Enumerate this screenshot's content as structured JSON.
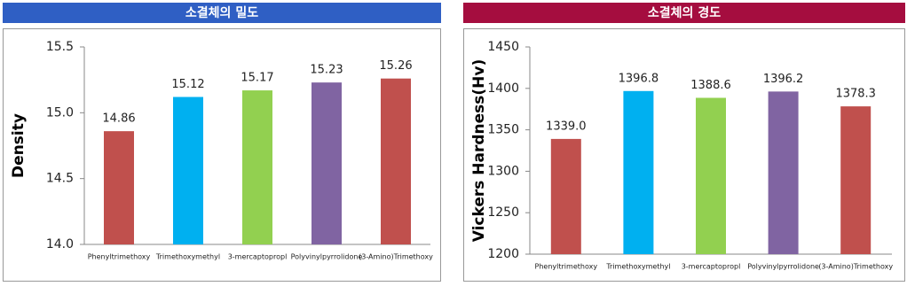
{
  "chart_data": [
    {
      "type": "bar",
      "title": "소결체의 밀도",
      "header_color": "#2f5fc4",
      "y_label": "Density",
      "categories": [
        "Phenyltrimethoxy",
        "Trimethoxymethyl",
        "3-mercaptopropl",
        "Polyvinylpyrrolidone",
        "(3-Amino)Trimethoxy"
      ],
      "values": [
        14.86,
        15.12,
        15.17,
        15.23,
        15.26
      ],
      "colors": [
        "#c0504d",
        "#00b0f0",
        "#92d050",
        "#8064a2",
        "#c0504d"
      ],
      "ylim": [
        14.0,
        15.5
      ],
      "yticks": [
        {
          "value": 14,
          "label": "14.0"
        },
        14.5,
        {
          "value": 15,
          "label": "15.0"
        },
        15.5
      ]
    },
    {
      "type": "bar",
      "title": "소결체의 경도",
      "header_color": "#a50d3f",
      "y_label": "Vickers Hardness(Hv)",
      "categories": [
        "Phenyltrimethoxy",
        "Trimethoxymethyl",
        "3-mercaptopropl",
        "Polyvinylpyrrolidone",
        "(3-Amino)Trimethoxy"
      ],
      "values": [
        1339.0,
        1396.8,
        1388.6,
        1396.2,
        1378.3
      ],
      "value_labels": [
        "1339.0",
        "1396.8",
        "1388.6",
        "1396.2",
        "1378.3"
      ],
      "colors": [
        "#c0504d",
        "#00b0f0",
        "#92d050",
        "#8064a2",
        "#c0504d"
      ],
      "ylim": [
        1200,
        1450
      ],
      "yticks": [
        1200,
        1250,
        1300,
        1350,
        1400,
        1450
      ]
    }
  ]
}
